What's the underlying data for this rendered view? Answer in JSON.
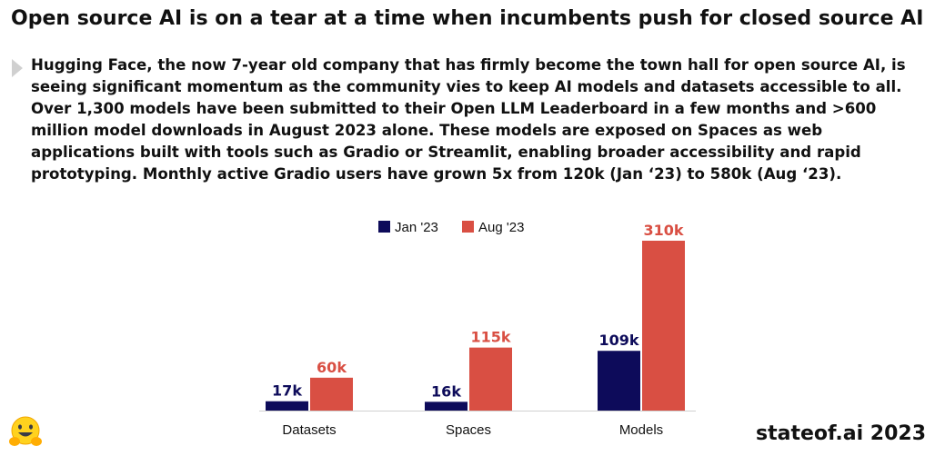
{
  "header": {
    "title": "Open source AI is on a tear at a time when incumbents push for closed source AI"
  },
  "body": {
    "paragraph": "Hugging Face, the now 7-year old company that has firmly become the town hall for open source AI, is seeing significant momentum as the community vies to keep AI models and datasets accessible to all. Over 1,300 models have been submitted to their Open LLM Leaderboard in a few months and >600 million model downloads in August 2023 alone. These models are exposed on Spaces as web applications built with tools such as Gradio or Streamlit, enabling broader accessibility and rapid prototyping. Monthly active Gradio users have grown 5x from 120k (Jan ‘23) to 580k (Aug ‘23)."
  },
  "footer": {
    "brand": "stateof.ai 2023",
    "logo_icon": "hugging-face-emoji-icon"
  },
  "chart_data": {
    "type": "bar",
    "categories": [
      "Datasets",
      "Spaces",
      "Models"
    ],
    "series": [
      {
        "name": "Jan '23",
        "color": "#0d0b5a",
        "values": [
          17,
          16,
          109
        ],
        "labels": [
          "17k",
          "16k",
          "109k"
        ]
      },
      {
        "name": "Aug '23",
        "color": "#d94f43",
        "values": [
          60,
          115,
          310
        ],
        "labels": [
          "60k",
          "115k",
          "310k"
        ]
      }
    ],
    "unit": "k",
    "ylim": [
      0,
      310
    ],
    "grid": false,
    "legend": "top-center"
  }
}
